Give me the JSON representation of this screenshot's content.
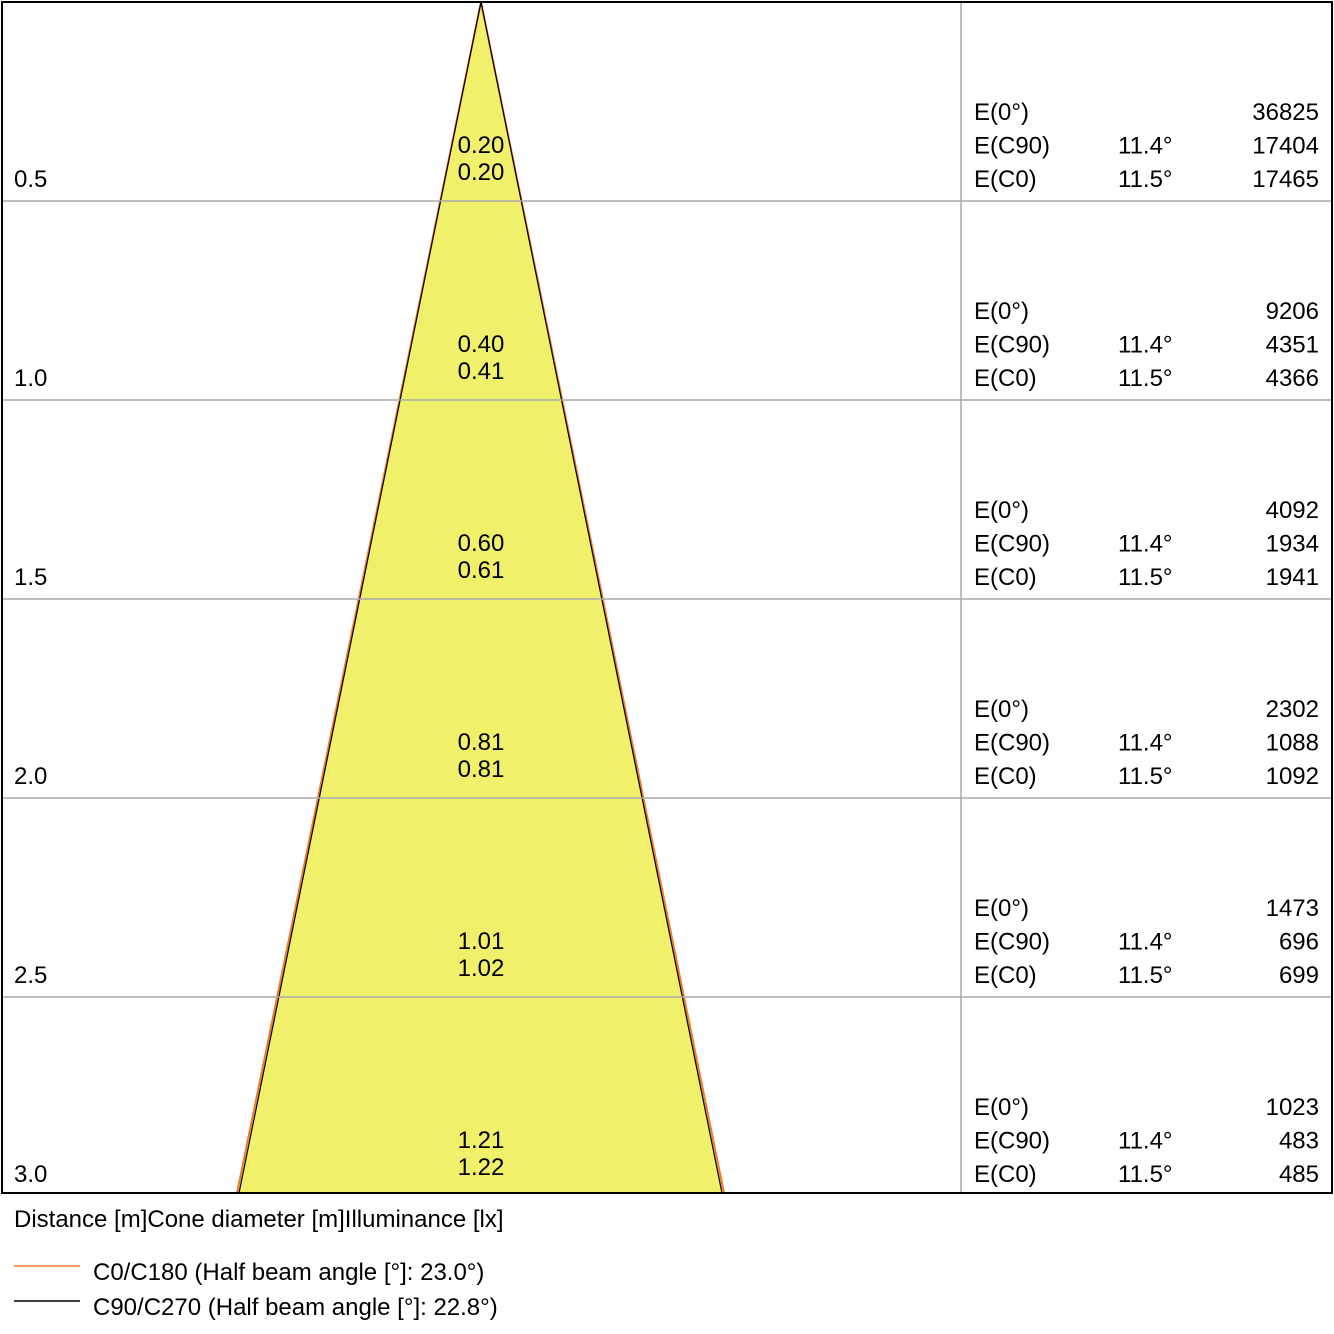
{
  "rows": [
    {
      "distance": "0.5",
      "diameters": [
        "0.20",
        "0.20"
      ],
      "illuminance": [
        {
          "label": "E(0°)",
          "value": "36825"
        },
        {
          "label": "E(C90)",
          "angle": "11.4°",
          "value": "17404"
        },
        {
          "label": "E(C0)",
          "angle": "11.5°",
          "value": "17465"
        }
      ]
    },
    {
      "distance": "1.0",
      "diameters": [
        "0.40",
        "0.41"
      ],
      "illuminance": [
        {
          "label": "E(0°)",
          "value": "9206"
        },
        {
          "label": "E(C90)",
          "angle": "11.4°",
          "value": "4351"
        },
        {
          "label": "E(C0)",
          "angle": "11.5°",
          "value": "4366"
        }
      ]
    },
    {
      "distance": "1.5",
      "diameters": [
        "0.60",
        "0.61"
      ],
      "illuminance": [
        {
          "label": "E(0°)",
          "value": "4092"
        },
        {
          "label": "E(C90)",
          "angle": "11.4°",
          "value": "1934"
        },
        {
          "label": "E(C0)",
          "angle": "11.5°",
          "value": "1941"
        }
      ]
    },
    {
      "distance": "2.0",
      "diameters": [
        "0.81",
        "0.81"
      ],
      "illuminance": [
        {
          "label": "E(0°)",
          "value": "2302"
        },
        {
          "label": "E(C90)",
          "angle": "11.4°",
          "value": "1088"
        },
        {
          "label": "E(C0)",
          "angle": "11.5°",
          "value": "1092"
        }
      ]
    },
    {
      "distance": "2.5",
      "diameters": [
        "1.01",
        "1.02"
      ],
      "illuminance": [
        {
          "label": "E(0°)",
          "value": "1473"
        },
        {
          "label": "E(C90)",
          "angle": "11.4°",
          "value": "696"
        },
        {
          "label": "E(C0)",
          "angle": "11.5°",
          "value": "699"
        }
      ]
    },
    {
      "distance": "3.0",
      "diameters": [
        "1.21",
        "1.22"
      ],
      "illuminance": [
        {
          "label": "E(0°)",
          "value": "1023"
        },
        {
          "label": "E(C90)",
          "angle": "11.4°",
          "value": "483"
        },
        {
          "label": "E(C0)",
          "angle": "11.5°",
          "value": "485"
        }
      ]
    }
  ],
  "footer": "Distance [m]Cone diameter [m]Illuminance [lx]",
  "legend": [
    {
      "label": "C0/C180 (Half beam angle [°]: 23.0°)",
      "color": "#f07a2a"
    },
    {
      "label": "C90/C270 (Half beam angle [°]: 22.8°)",
      "color": "#000000"
    }
  ]
}
